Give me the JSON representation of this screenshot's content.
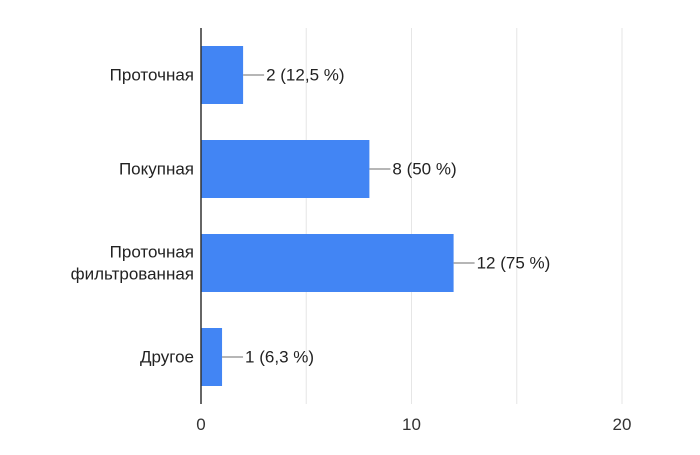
{
  "chart_data": {
    "type": "bar",
    "orientation": "horizontal",
    "categories": [
      [
        "Проточная"
      ],
      [
        "Покупная"
      ],
      [
        "Проточная",
        "фильтрованная"
      ],
      [
        "Другое"
      ]
    ],
    "values": [
      2,
      8,
      12,
      1
    ],
    "data_labels": [
      "2 (12,5 %)",
      "8 (50 %)",
      "12 (75 %)",
      "1 (6,3 %)"
    ],
    "xlim": [
      0,
      20
    ],
    "xticks": [
      0,
      10,
      20
    ],
    "xtick_labels": [
      "0",
      "10",
      "20"
    ],
    "grid": true,
    "legend": "none",
    "colors": {
      "bar": "#4285f4",
      "grid": "#e6e6e6",
      "axis": "#333333",
      "leader": "#9e9e9e"
    }
  }
}
